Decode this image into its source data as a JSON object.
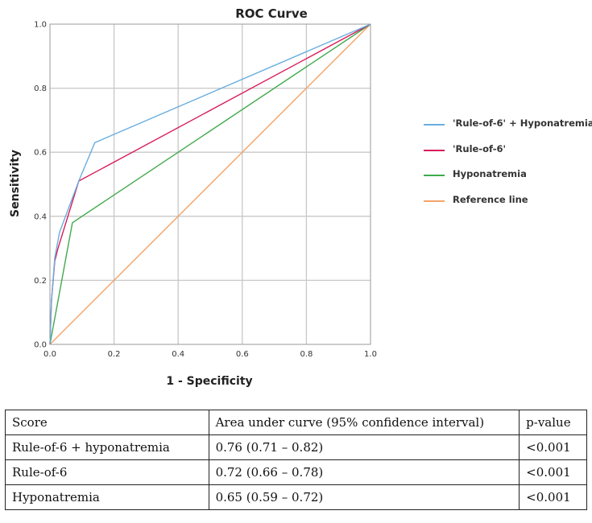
{
  "chart_data": {
    "type": "line",
    "title": "ROC Curve",
    "xlabel": "1 - Specificity",
    "ylabel": "Sensitivity",
    "xlim": [
      0,
      1
    ],
    "ylim": [
      0,
      1
    ],
    "xticks": [
      "0.0",
      "0.2",
      "0.4",
      "0.6",
      "0.8",
      "1.0"
    ],
    "yticks": [
      "0.0",
      "0.2",
      "0.4",
      "0.6",
      "0.8",
      "1.0"
    ],
    "grid": true,
    "legend_position": "right",
    "series": [
      {
        "name": "'Rule-of-6' + Hyponatremia",
        "color": "#6aaedf",
        "x": [
          0,
          0.005,
          0.015,
          0.03,
          0.09,
          0.14,
          1.0
        ],
        "y": [
          0,
          0.14,
          0.27,
          0.35,
          0.51,
          0.63,
          1.0
        ]
      },
      {
        "name": "'Rule-of-6'",
        "color": "#d81d5a",
        "x": [
          0,
          0.005,
          0.015,
          0.025,
          0.09,
          1.0
        ],
        "y": [
          0,
          0.14,
          0.26,
          0.3,
          0.51,
          1.0
        ]
      },
      {
        "name": "Hyponatremia",
        "color": "#3faa4c",
        "x": [
          0,
          0.07,
          1.0
        ],
        "y": [
          0,
          0.38,
          1.0
        ]
      },
      {
        "name": "Reference line",
        "color": "#f3a46b",
        "x": [
          0,
          1.0
        ],
        "y": [
          0,
          1.0
        ]
      }
    ]
  },
  "table": {
    "headers": [
      "Score",
      "Area under curve (95% confidence interval)",
      "p-value"
    ],
    "rows": [
      [
        "Rule-of-6 + hyponatremia",
        "0.76 (0.71 – 0.82)",
        "<0.001"
      ],
      [
        "Rule-of-6",
        "0.72 (0.66 – 0.78)",
        "<0.001"
      ],
      [
        "Hyponatremia",
        "0.65 (0.59 – 0.72)",
        "<0.001"
      ]
    ]
  }
}
